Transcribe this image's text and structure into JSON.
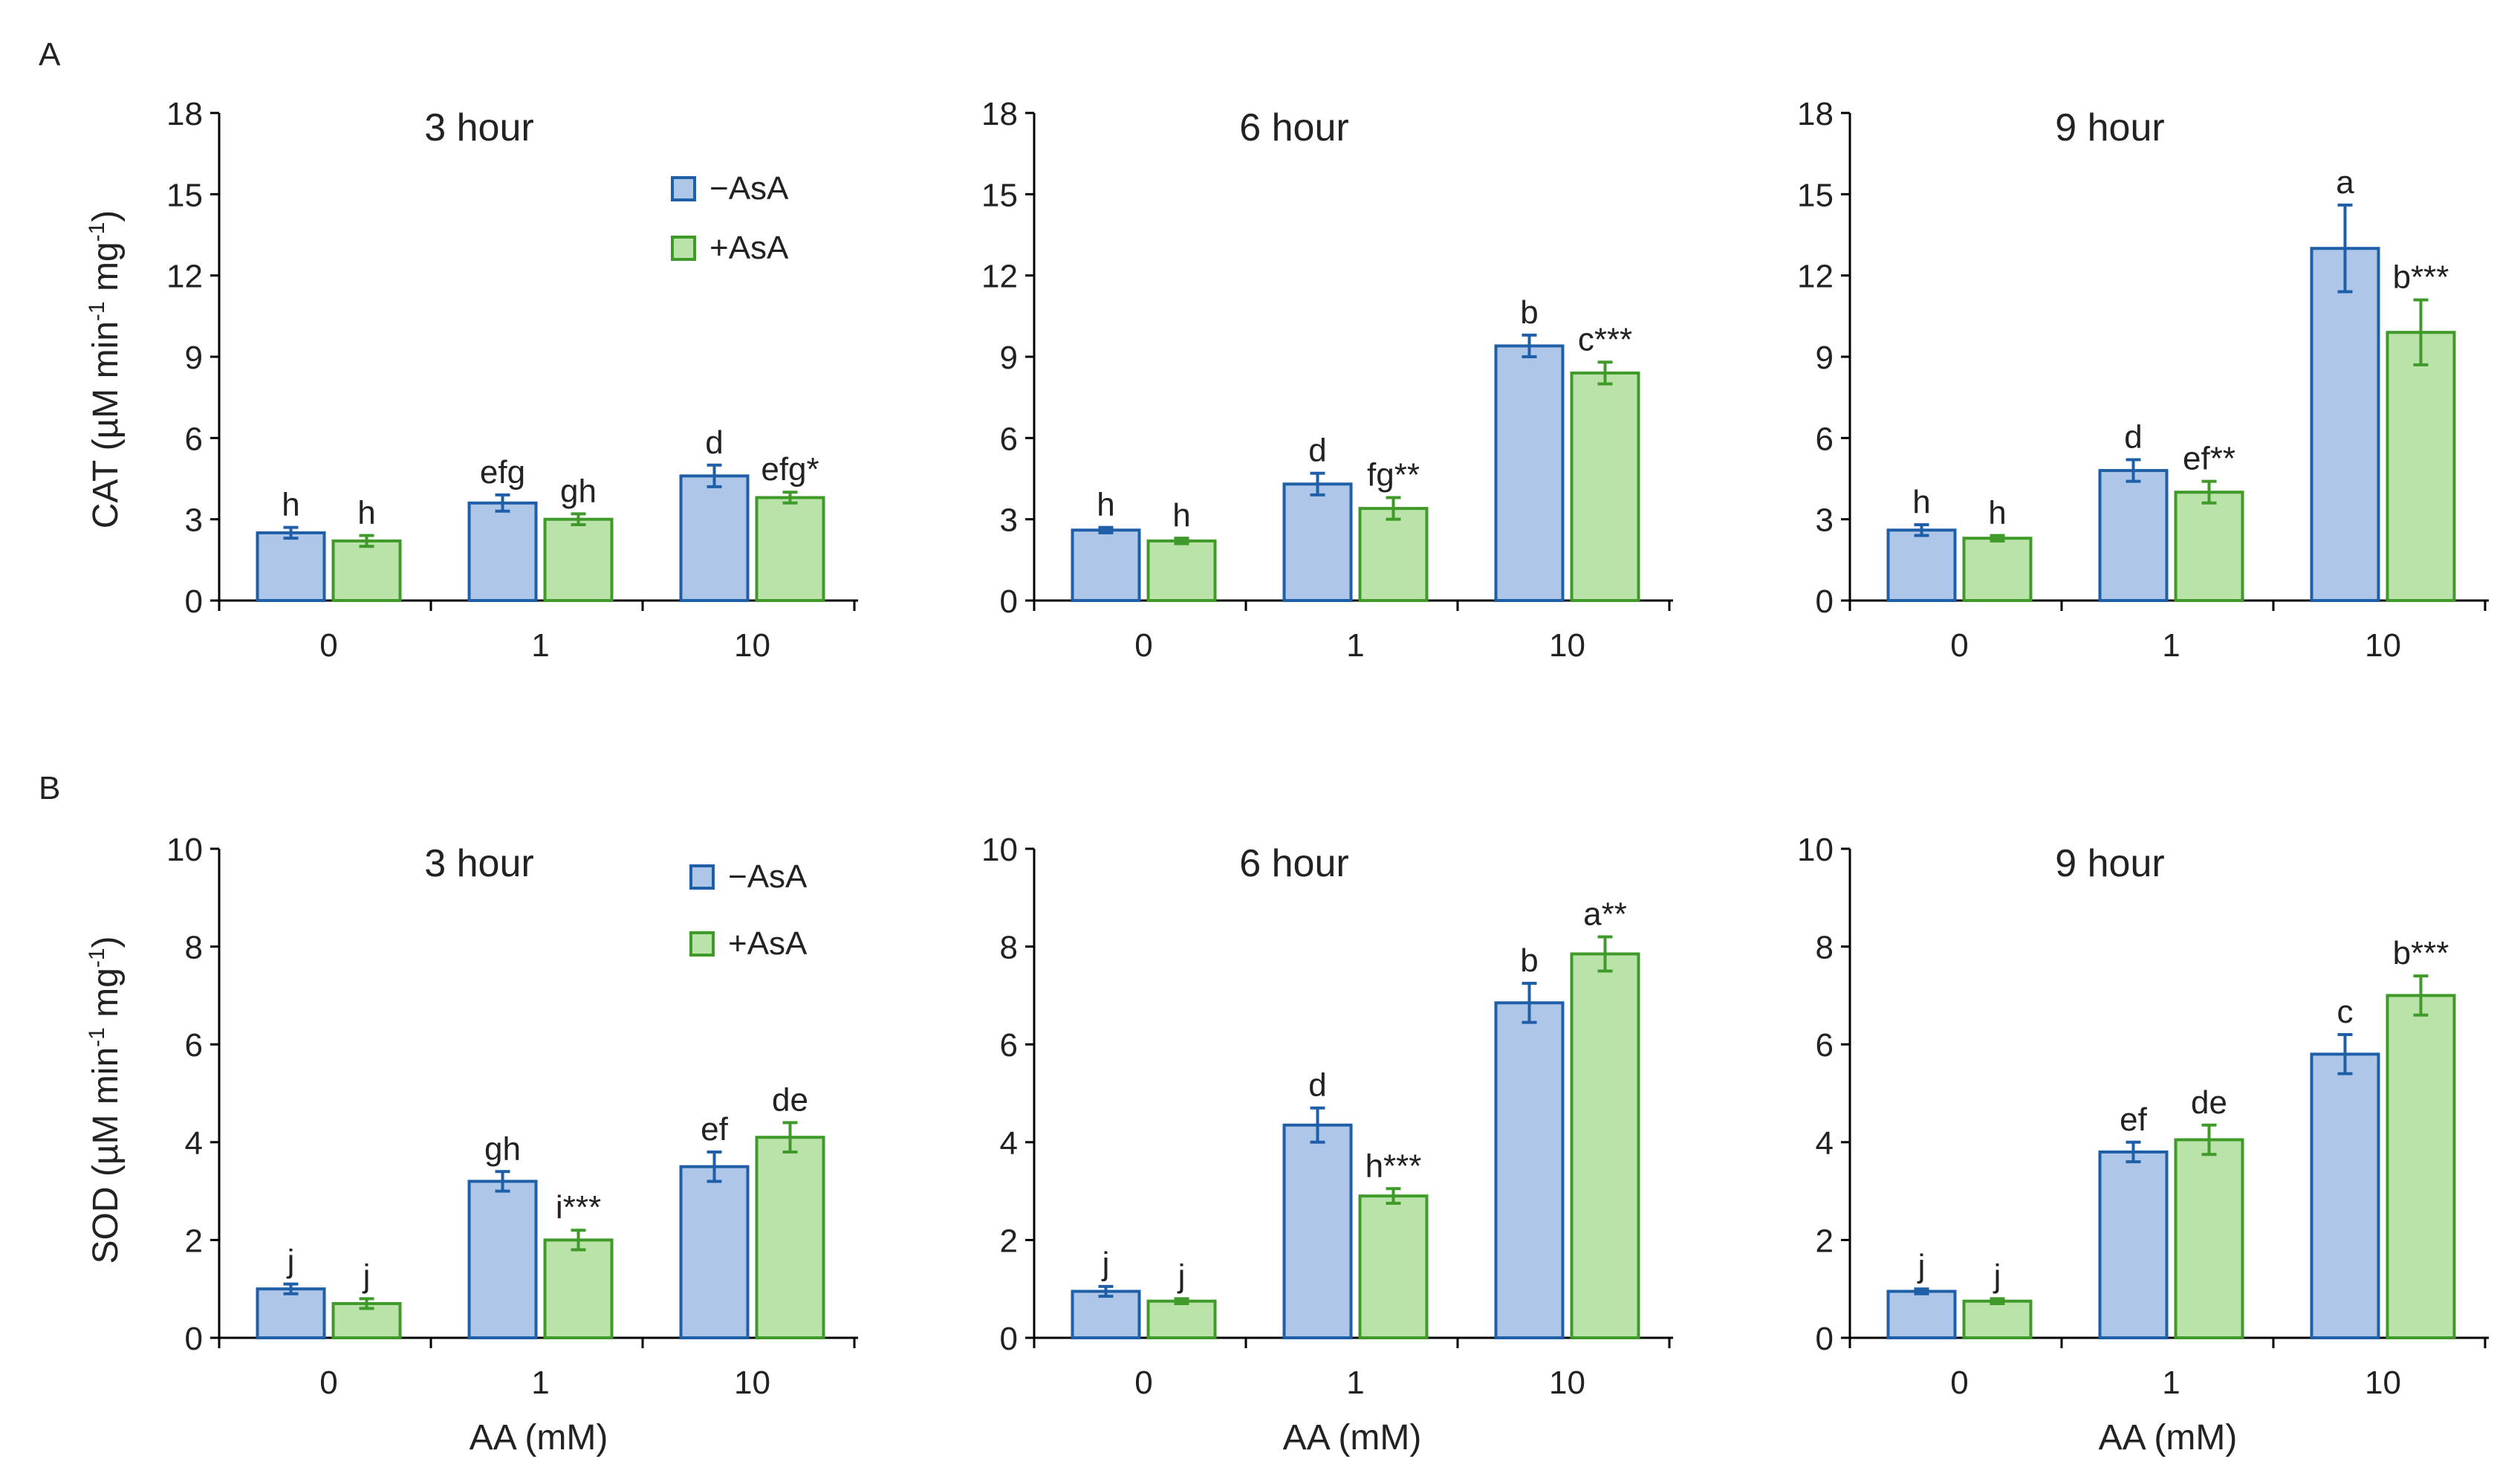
{
  "colors": {
    "minus_fill": "#aec6e8",
    "minus_stroke": "#1f5fa8",
    "plus_fill": "#b9e3a8",
    "plus_stroke": "#3f9a2a",
    "axis": "#000000",
    "text": "#222222"
  },
  "panel_letters": [
    "A",
    "B"
  ],
  "y_titles": {
    "A": {
      "base": "CAT (µM min",
      "sup1": "-1",
      "mid": " mg",
      "sup2": "-1",
      "end": ")"
    },
    "B": {
      "base": "SOD (µM min",
      "sup1": "-1",
      "mid": " mg",
      "sup2": "-1",
      "end": ")"
    }
  },
  "x_axis_title": "AA (mM)",
  "legend": {
    "minus": "−AsA",
    "plus": "+AsA"
  },
  "chart_data": [
    {
      "type": "bar",
      "panel": "A",
      "title": "3 hour",
      "categories": [
        "0",
        "1",
        "10"
      ],
      "ylim": [
        0,
        18
      ],
      "yticks": [
        0,
        3,
        6,
        9,
        12,
        15,
        18
      ],
      "series": [
        {
          "name": "−AsA",
          "values": [
            2.5,
            3.6,
            4.6
          ],
          "errors": [
            0.2,
            0.3,
            0.4
          ],
          "labels": [
            "h",
            "efg",
            "d"
          ]
        },
        {
          "name": "+AsA",
          "values": [
            2.2,
            3.0,
            3.8
          ],
          "errors": [
            0.2,
            0.2,
            0.2
          ],
          "labels": [
            "h",
            "gh",
            "efg*"
          ]
        }
      ]
    },
    {
      "type": "bar",
      "panel": "A",
      "title": "6 hour",
      "categories": [
        "0",
        "1",
        "10"
      ],
      "ylim": [
        0,
        18
      ],
      "yticks": [
        0,
        3,
        6,
        9,
        12,
        15,
        18
      ],
      "series": [
        {
          "name": "−AsA",
          "values": [
            2.6,
            4.3,
            9.4
          ],
          "errors": [
            0.1,
            0.4,
            0.4
          ],
          "labels": [
            "h",
            "d",
            "b"
          ]
        },
        {
          "name": "+AsA",
          "values": [
            2.2,
            3.4,
            8.4
          ],
          "errors": [
            0.1,
            0.4,
            0.4
          ],
          "labels": [
            "h",
            "fg**",
            "c***"
          ]
        }
      ]
    },
    {
      "type": "bar",
      "panel": "A",
      "title": "9 hour",
      "categories": [
        "0",
        "1",
        "10"
      ],
      "ylim": [
        0,
        18
      ],
      "yticks": [
        0,
        3,
        6,
        9,
        12,
        15,
        18
      ],
      "series": [
        {
          "name": "−AsA",
          "values": [
            2.6,
            4.8,
            13.0
          ],
          "errors": [
            0.2,
            0.4,
            1.6
          ],
          "labels": [
            "h",
            "d",
            "a"
          ]
        },
        {
          "name": "+AsA",
          "values": [
            2.3,
            4.0,
            9.9
          ],
          "errors": [
            0.1,
            0.4,
            1.2
          ],
          "labels": [
            "h",
            "ef**",
            "b***"
          ]
        }
      ]
    },
    {
      "type": "bar",
      "panel": "B",
      "title": "3 hour",
      "categories": [
        "0",
        "1",
        "10"
      ],
      "ylim": [
        0,
        10
      ],
      "yticks": [
        0,
        2,
        4,
        6,
        8,
        10
      ],
      "series": [
        {
          "name": "−AsA",
          "values": [
            1.0,
            3.2,
            3.5
          ],
          "errors": [
            0.1,
            0.2,
            0.3
          ],
          "labels": [
            "j",
            "gh",
            "ef"
          ]
        },
        {
          "name": "+AsA",
          "values": [
            0.7,
            2.0,
            4.1
          ],
          "errors": [
            0.1,
            0.2,
            0.3
          ],
          "labels": [
            "j",
            "i***",
            "de"
          ]
        }
      ]
    },
    {
      "type": "bar",
      "panel": "B",
      "title": "6 hour",
      "categories": [
        "0",
        "1",
        "10"
      ],
      "ylim": [
        0,
        10
      ],
      "yticks": [
        0,
        2,
        4,
        6,
        8,
        10
      ],
      "series": [
        {
          "name": "−AsA",
          "values": [
            0.95,
            4.35,
            6.85
          ],
          "errors": [
            0.1,
            0.35,
            0.4
          ],
          "labels": [
            "j",
            "d",
            "b"
          ]
        },
        {
          "name": "+AsA",
          "values": [
            0.75,
            2.9,
            7.85
          ],
          "errors": [
            0.05,
            0.15,
            0.35
          ],
          "labels": [
            "j",
            "h***",
            "a**"
          ]
        }
      ]
    },
    {
      "type": "bar",
      "panel": "B",
      "title": "9 hour",
      "categories": [
        "0",
        "1",
        "10"
      ],
      "ylim": [
        0,
        10
      ],
      "yticks": [
        0,
        2,
        4,
        6,
        8,
        10
      ],
      "series": [
        {
          "name": "−AsA",
          "values": [
            0.95,
            3.8,
            5.8
          ],
          "errors": [
            0.05,
            0.2,
            0.4
          ],
          "labels": [
            "j",
            "ef",
            "c"
          ]
        },
        {
          "name": "+AsA",
          "values": [
            0.75,
            4.05,
            7.0
          ],
          "errors": [
            0.05,
            0.3,
            0.4
          ],
          "labels": [
            "j",
            "de",
            "b***"
          ]
        }
      ]
    }
  ]
}
